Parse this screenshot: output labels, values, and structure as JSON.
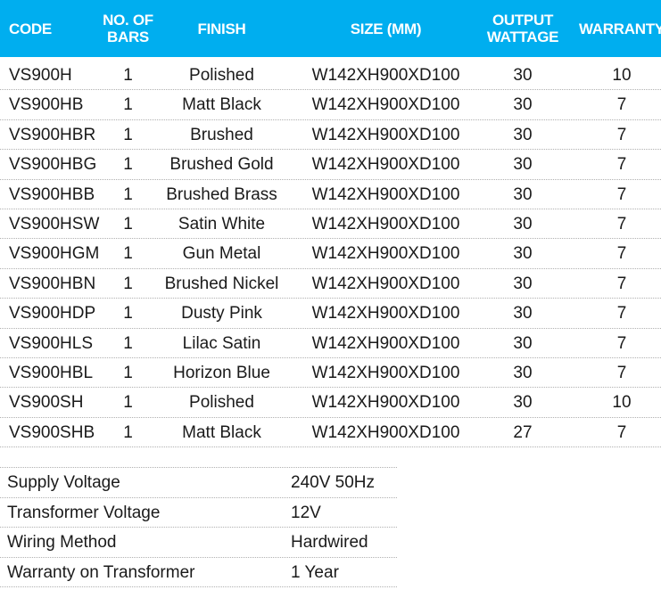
{
  "header": {
    "accent": "#00aeef",
    "columns": [
      "CODE",
      "NO. OF\nBARS",
      "FINISH",
      "SIZE (MM)",
      "OUTPUT\nWATTAGE",
      "WARRANTY"
    ]
  },
  "rows": [
    [
      "VS900H",
      "1",
      "Polished",
      "W142XH900XD100",
      "30",
      "10"
    ],
    [
      "VS900HB",
      "1",
      "Matt Black",
      "W142XH900XD100",
      "30",
      "7"
    ],
    [
      "VS900HBR",
      "1",
      "Brushed",
      "W142XH900XD100",
      "30",
      "7"
    ],
    [
      "VS900HBG",
      "1",
      "Brushed Gold",
      "W142XH900XD100",
      "30",
      "7"
    ],
    [
      "VS900HBB",
      "1",
      "Brushed Brass",
      "W142XH900XD100",
      "30",
      "7"
    ],
    [
      "VS900HSW",
      "1",
      "Satin White",
      "W142XH900XD100",
      "30",
      "7"
    ],
    [
      "VS900HGM",
      "1",
      "Gun Metal",
      "W142XH900XD100",
      "30",
      "7"
    ],
    [
      "VS900HBN",
      "1",
      "Brushed Nickel",
      "W142XH900XD100",
      "30",
      "7"
    ],
    [
      "VS900HDP",
      "1",
      "Dusty Pink",
      "W142XH900XD100",
      "30",
      "7"
    ],
    [
      "VS900HLS",
      "1",
      "Lilac Satin",
      "W142XH900XD100",
      "30",
      "7"
    ],
    [
      "VS900HBL",
      "1",
      "Horizon Blue",
      "W142XH900XD100",
      "30",
      "7"
    ],
    [
      "VS900SH",
      "1",
      "Polished",
      "W142XH900XD100",
      "30",
      "10"
    ],
    [
      "VS900SHB",
      "1",
      "Matt Black",
      "W142XH900XD100",
      "27",
      "7"
    ]
  ],
  "specs": [
    [
      "Supply Voltage",
      "240V 50Hz"
    ],
    [
      "Transformer Voltage",
      "12V"
    ],
    [
      "Wiring Method",
      "Hardwired"
    ],
    [
      "Warranty on Transformer",
      "1 Year"
    ]
  ]
}
